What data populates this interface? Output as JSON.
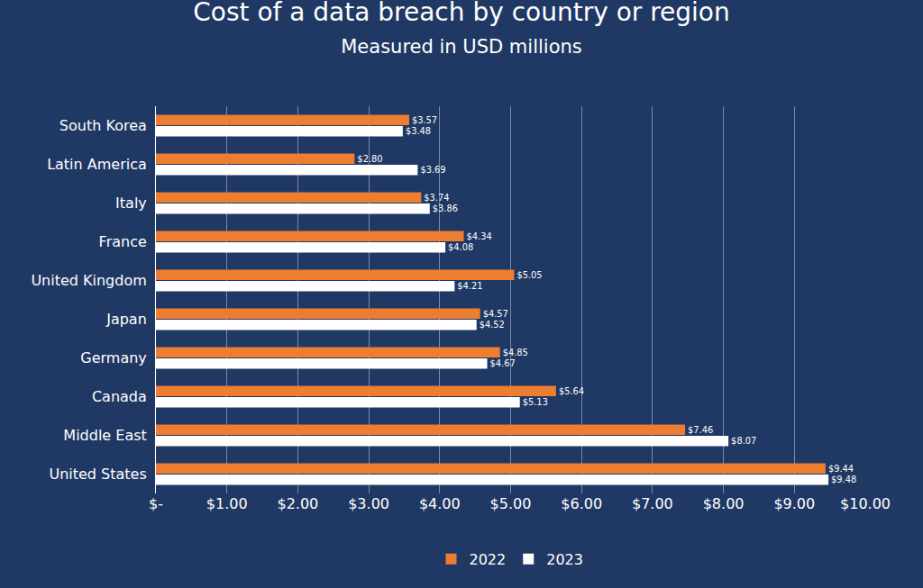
{
  "chart_data": {
    "type": "bar",
    "title": "Cost of a data breach by country or region",
    "subtitle": "Measured in USD millions",
    "orientation": "horizontal",
    "categories": [
      "South Korea",
      "Latin America",
      "Italy",
      "France",
      "United Kingdom",
      "Japan",
      "Germany",
      "Canada",
      "Middle East",
      "United States"
    ],
    "series": [
      {
        "name": "2022",
        "color": "#ed7d31",
        "values": [
          3.57,
          2.8,
          3.74,
          4.34,
          5.05,
          4.57,
          4.85,
          5.64,
          7.46,
          9.44
        ],
        "value_labels": [
          "$3.57",
          "$2.80",
          "$3.74",
          "$4.34",
          "$5.05",
          "$4.57",
          "$4.85",
          "$5.64",
          "$7.46",
          "$9.44"
        ]
      },
      {
        "name": "2023",
        "color": "#ffffff",
        "values": [
          3.48,
          3.69,
          3.86,
          4.08,
          4.21,
          4.52,
          4.67,
          5.13,
          8.07,
          9.48
        ],
        "value_labels": [
          "$3.48",
          "$3.69",
          "$3.86",
          "$4.08",
          "$4.21",
          "$4.52",
          "$4.67",
          "$5.13",
          "$8.07",
          "$9.48"
        ]
      }
    ],
    "xlim": [
      0,
      10
    ],
    "xticks": [
      {
        "value": 0,
        "label": "$-"
      },
      {
        "value": 1,
        "label": "$1.00"
      },
      {
        "value": 2,
        "label": "$2.00"
      },
      {
        "value": 3,
        "label": "$3.00"
      },
      {
        "value": 4,
        "label": "$4.00"
      },
      {
        "value": 5,
        "label": "$5.00"
      },
      {
        "value": 6,
        "label": "$6.00"
      },
      {
        "value": 7,
        "label": "$7.00"
      },
      {
        "value": 8,
        "label": "$8.00"
      },
      {
        "value": 9,
        "label": "$9.00"
      },
      {
        "value": 10,
        "label": "$10.00"
      }
    ],
    "grid": true,
    "data_labels": true,
    "legend": "bottom"
  }
}
